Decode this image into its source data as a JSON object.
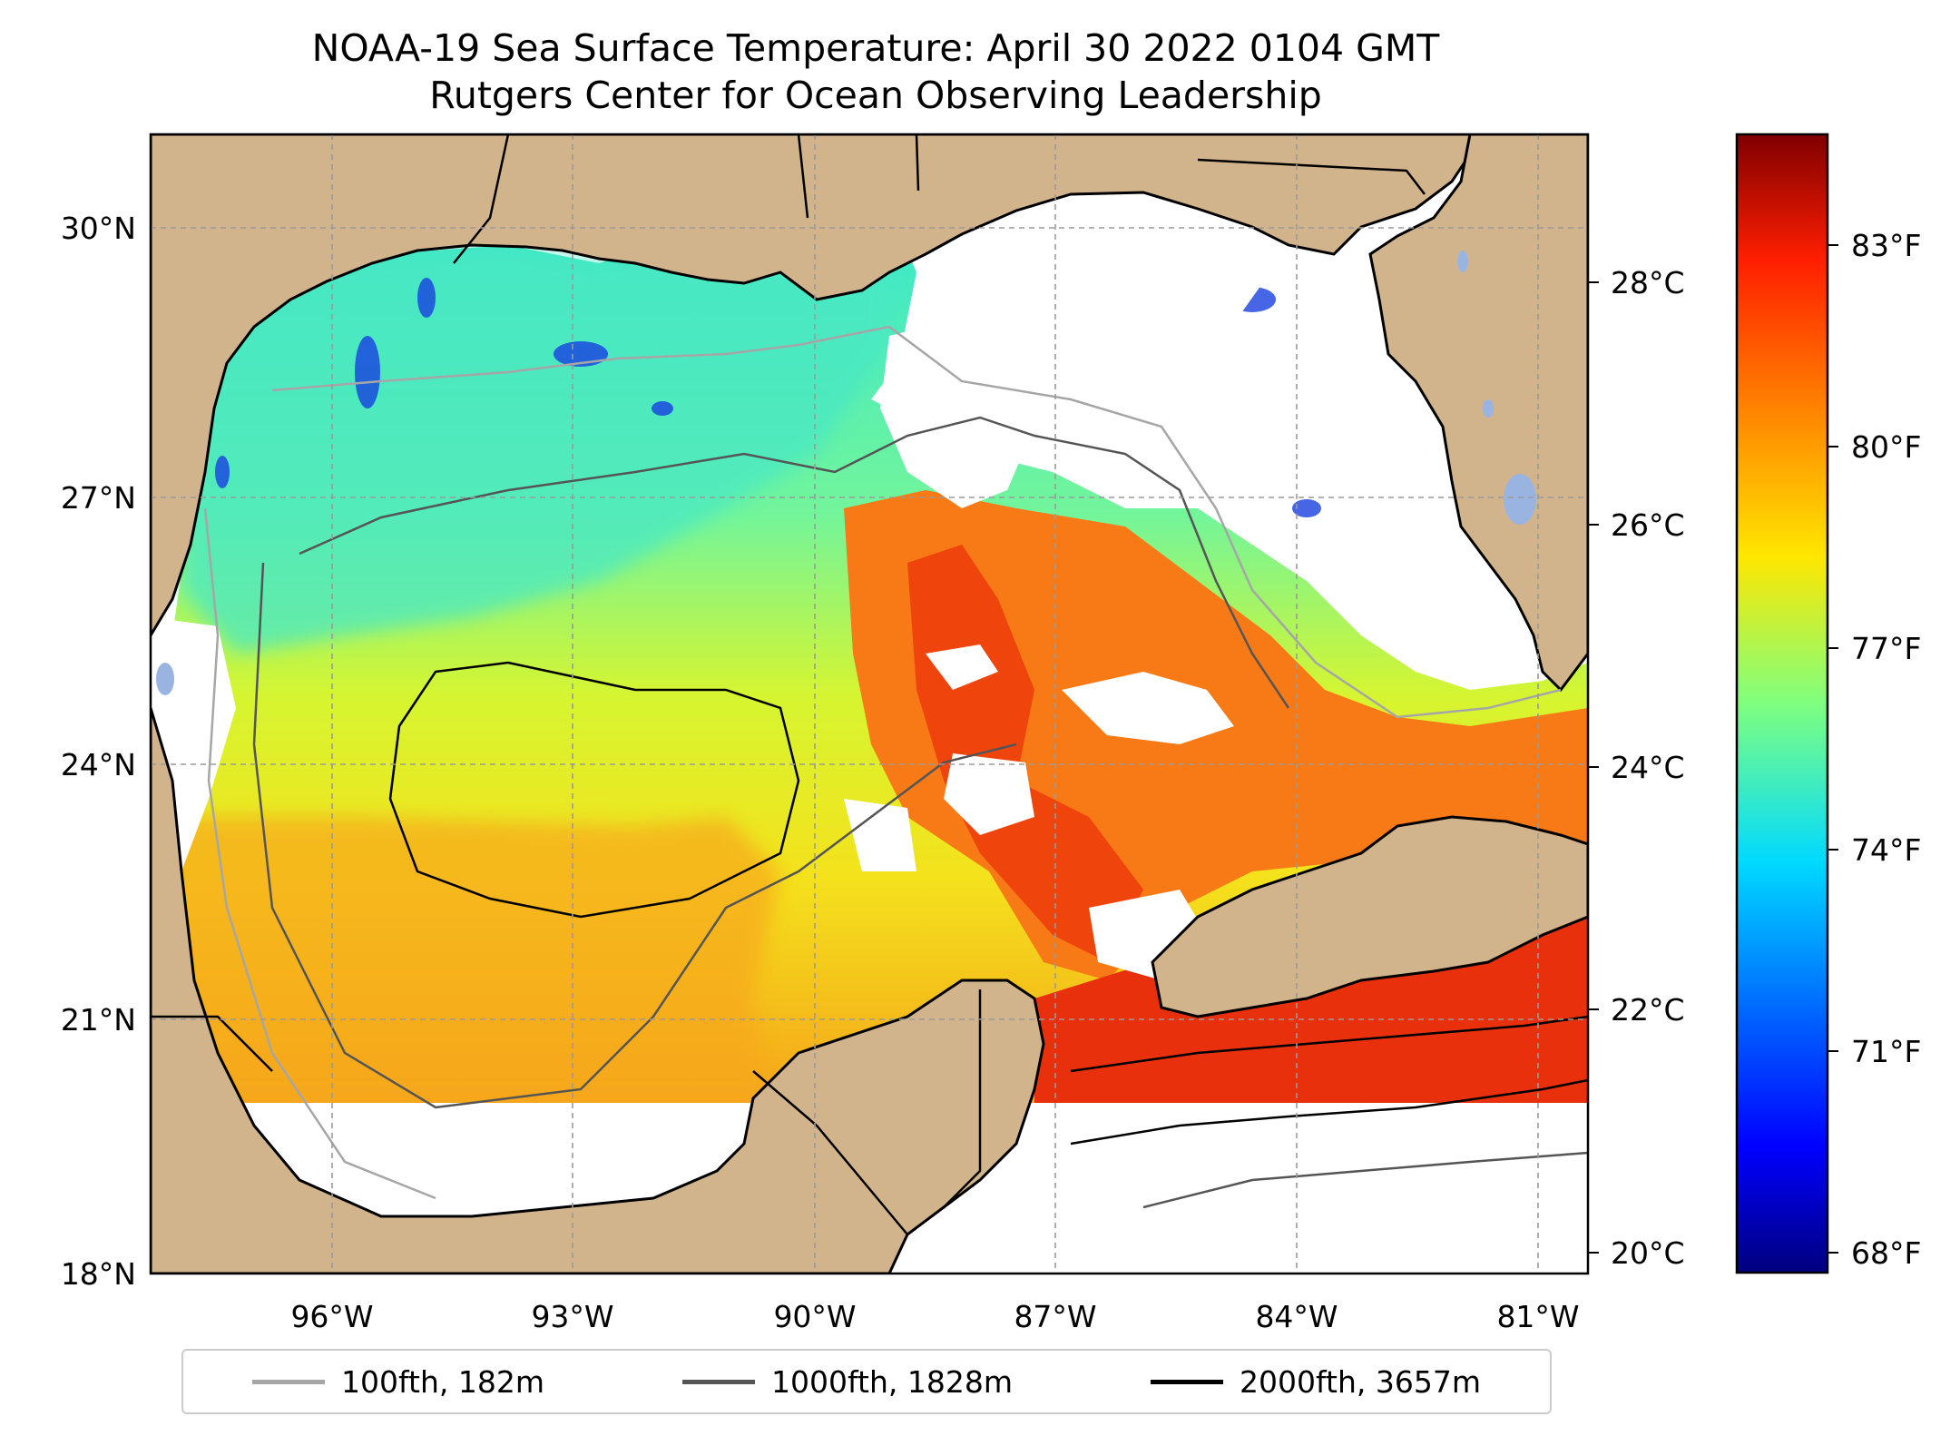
{
  "title": "NOAA-19 Sea Surface Temperature: April 30 2022 0104 GMT",
  "subtitle": "Rutgers Center for Ocean Observing Leadership",
  "map": {
    "lon_ticks": [
      "96°W",
      "93°W",
      "90°W",
      "87°W",
      "84°W",
      "81°W"
    ],
    "lat_ticks": [
      "30°N",
      "27°N",
      "24°N",
      "21°N",
      "18°N"
    ],
    "celsius_ticks": [
      "28°C",
      "26°C",
      "24°C",
      "22°C",
      "20°C"
    ],
    "land_color": "#d2b48c",
    "lake_color": "#9ab4e2",
    "no_data_color": "#ffffff"
  },
  "colorbar": {
    "fahrenheit_ticks": [
      "83°F",
      "80°F",
      "77°F",
      "74°F",
      "71°F",
      "68°F"
    ],
    "colormap": "jet"
  },
  "legend": [
    {
      "label": "100fth, 182m",
      "color": "#a6a6a6"
    },
    {
      "label": "1000fth, 1828m",
      "color": "#555555"
    },
    {
      "label": "2000fth, 3657m",
      "color": "#000000"
    }
  ]
}
